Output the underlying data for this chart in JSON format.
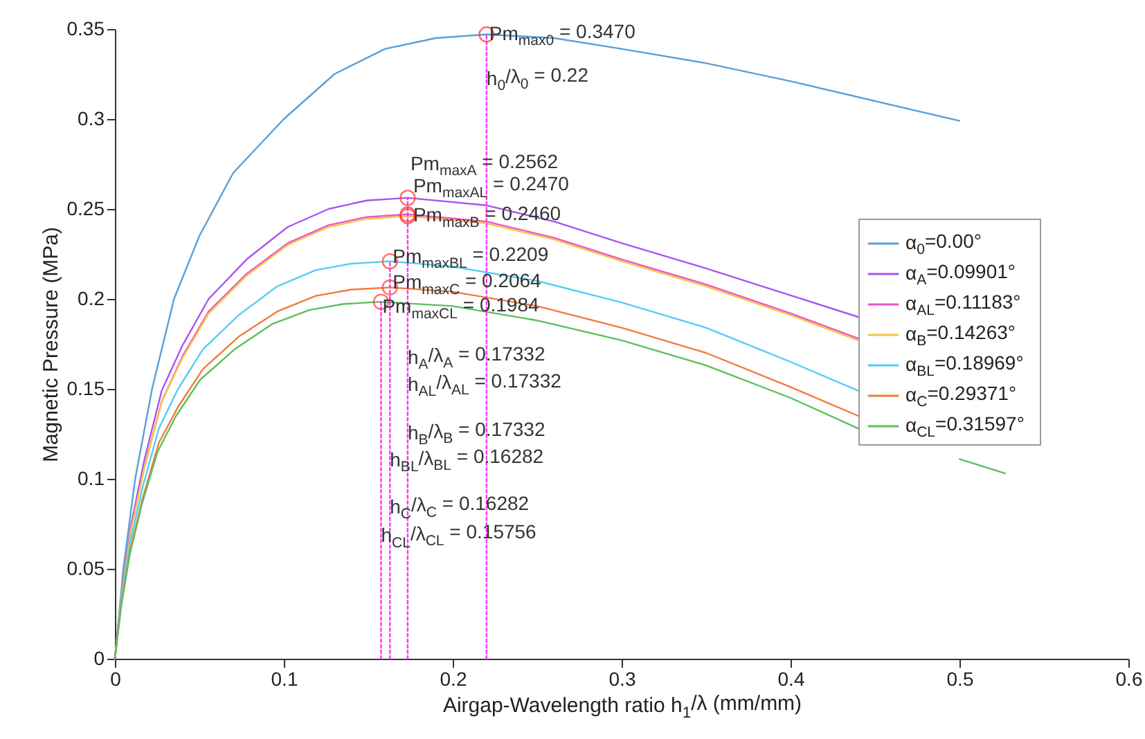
{
  "chart_data": {
    "type": "line",
    "xlabel": "Airgap-Wavelength ratio h$_{1}$/λ (mm/mm)",
    "ylabel": "Magnetic Pressure (MPa)",
    "xlim": [
      0,
      0.6
    ],
    "xticks": [
      0,
      0.1,
      0.2,
      0.3,
      0.4,
      0.5,
      0.6
    ],
    "ylim": [
      0,
      0.35
    ],
    "yticks": [
      0,
      0.05,
      0.1,
      0.15,
      0.2,
      0.25,
      0.3,
      0.35
    ],
    "grid": false,
    "legend": "right",
    "series": [
      {
        "name": "α$_{0}$=0.00°",
        "color": "#5a9fd8",
        "x": [
          0,
          0.005,
          0.012,
          0.022,
          0.035,
          0.05,
          0.07,
          0.1,
          0.13,
          0.16,
          0.19,
          0.22,
          0.26,
          0.3,
          0.35,
          0.4,
          0.45,
          0.5
        ],
        "values": [
          0,
          0.05,
          0.1,
          0.15,
          0.2,
          0.235,
          0.27,
          0.3,
          0.325,
          0.339,
          0.345,
          0.347,
          0.345,
          0.339,
          0.331,
          0.321,
          0.31,
          0.299
        ]
      },
      {
        "name": "α$_{A}$=0.09901°",
        "color": "#a855f0",
        "x": [
          0,
          0.004,
          0.0095,
          0.0173,
          0.0277,
          0.0399,
          0.0555,
          0.078,
          0.1023,
          0.1265,
          0.149,
          0.17332,
          0.22,
          0.26,
          0.3,
          0.35,
          0.4,
          0.44
        ],
        "values": [
          0,
          0.037,
          0.074,
          0.11,
          0.149,
          0.174,
          0.2,
          0.222,
          0.24,
          0.25,
          0.2547,
          0.2562,
          0.252,
          0.243,
          0.231,
          0.217,
          0.202,
          0.19
        ]
      },
      {
        "name": "α$_{AL}$=0.11183°",
        "color": "#f050c8",
        "x": [
          0,
          0.004,
          0.0095,
          0.0173,
          0.0277,
          0.0399,
          0.0555,
          0.078,
          0.1023,
          0.1265,
          0.149,
          0.17332,
          0.22,
          0.26,
          0.3,
          0.35,
          0.4,
          0.44
        ],
        "values": [
          0,
          0.0356,
          0.0716,
          0.106,
          0.143,
          0.168,
          0.193,
          0.214,
          0.231,
          0.241,
          0.2455,
          0.247,
          0.243,
          0.234,
          0.222,
          0.208,
          0.192,
          0.178
        ]
      },
      {
        "name": "α$_{B}$=0.14263°",
        "color": "#f5c445",
        "x": [
          0,
          0.004,
          0.0095,
          0.0173,
          0.0277,
          0.0399,
          0.0555,
          0.078,
          0.1023,
          0.1265,
          0.149,
          0.17332,
          0.22,
          0.26,
          0.3,
          0.35,
          0.4,
          0.44
        ],
        "values": [
          0,
          0.0354,
          0.0713,
          0.106,
          0.143,
          0.167,
          0.192,
          0.213,
          0.23,
          0.24,
          0.2445,
          0.246,
          0.242,
          0.233,
          0.221,
          0.207,
          0.191,
          0.177
        ]
      },
      {
        "name": "α$_{BL}$=0.18969°",
        "color": "#55ccf5",
        "x": [
          0,
          0.0037,
          0.009,
          0.0163,
          0.026,
          0.0374,
          0.0521,
          0.0733,
          0.0961,
          0.1189,
          0.14,
          0.16282,
          0.2,
          0.25,
          0.3,
          0.35,
          0.4,
          0.44
        ],
        "values": [
          0,
          0.0318,
          0.064,
          0.095,
          0.128,
          0.15,
          0.172,
          0.191,
          0.207,
          0.216,
          0.2196,
          0.2209,
          0.218,
          0.21,
          0.198,
          0.184,
          0.165,
          0.149
        ]
      },
      {
        "name": "α$_{C}$=0.29371°",
        "color": "#f07a3c",
        "x": [
          0,
          0.0037,
          0.009,
          0.0163,
          0.026,
          0.0374,
          0.0521,
          0.0733,
          0.0961,
          0.1189,
          0.14,
          0.16282,
          0.2,
          0.25,
          0.3,
          0.35,
          0.4,
          0.44
        ],
        "values": [
          0,
          0.0297,
          0.0599,
          0.0888,
          0.12,
          0.14,
          0.161,
          0.179,
          0.193,
          0.2017,
          0.2052,
          0.2064,
          0.204,
          0.196,
          0.184,
          0.17,
          0.151,
          0.135
        ]
      },
      {
        "name": "α$_{CL}$=0.31597°",
        "color": "#5cbf5c",
        "x": [
          0,
          0.0036,
          0.0087,
          0.0158,
          0.0252,
          0.0362,
          0.0504,
          0.0709,
          0.093,
          0.115,
          0.1355,
          0.15756,
          0.2,
          0.25,
          0.3,
          0.35,
          0.4,
          0.44,
          0.465,
          0.5,
          0.527
        ],
        "values": [
          0,
          0.0286,
          0.0575,
          0.0853,
          0.115,
          0.135,
          0.155,
          0.172,
          0.186,
          0.1938,
          0.1972,
          0.1984,
          0.196,
          0.188,
          0.177,
          0.163,
          0.145,
          0.128,
          null,
          0.111,
          0.103
        ]
      },
      {
        "type": "line",
        "line_style": "dotted",
        "color": "#ff33ff",
        "x": [
          0.22,
          0.22
        ],
        "values": [
          0,
          0.347
        ]
      },
      {
        "type": "line",
        "line_style": "dotted",
        "color": "#ff33ff",
        "x": [
          0.17332,
          0.17332
        ],
        "values": [
          0,
          0.2562
        ]
      },
      {
        "type": "line",
        "line_style": "dotted",
        "color": "#ff33ff",
        "x": [
          0.16282,
          0.16282
        ],
        "values": [
          0,
          0.2209
        ]
      },
      {
        "type": "line",
        "line_style": "dotted",
        "color": "#ff33ff",
        "x": [
          0.15756,
          0.15756
        ],
        "values": [
          0,
          0.1984
        ]
      },
      {
        "type": "scatter",
        "marker": "circle",
        "color": "#ff3333",
        "x": [
          0.22,
          0.17332,
          0.17332,
          0.17332,
          0.16282,
          0.16282,
          0.15756
        ],
        "values": [
          0.347,
          0.2562,
          0.247,
          0.246,
          0.2209,
          0.2064,
          0.1984
        ]
      }
    ],
    "annotations": [
      {
        "text": "Pm$_{max0}$ = 0.3470",
        "x": 0.22,
        "y": 0.347
      },
      {
        "text": "h$_{0}$/λ$_{0}$ = 0.22",
        "x": 0.22,
        "y": 0.322
      },
      {
        "text": "Pm$_{maxA}$ = 0.2562",
        "x": 0.17332,
        "y": 0.2562
      },
      {
        "text": "Pm$_{maxAL}$  = 0.2470",
        "x": 0.17332,
        "y": 0.247
      },
      {
        "text": "Pm$_{maxB}$ = 0.2460",
        "x": 0.17332,
        "y": 0.246
      },
      {
        "text": "Pm$_{maxBL}$ = 0.2209",
        "x": 0.16282,
        "y": 0.2209
      },
      {
        "text": "Pm$_{maxC}$ = 0.2064",
        "x": 0.16282,
        "y": 0.2064
      },
      {
        "text": "Pm$_{maxCL}$ = 0.1984",
        "x": 0.15756,
        "y": 0.1984
      },
      {
        "text": "h$_{A}$/λ$_{A}$ = 0.17332",
        "x": 0.17332,
        "y": 0.167
      },
      {
        "text": "h$_{AL}$/λ$_{AL}$ = 0.17332",
        "x": 0.17332,
        "y": 0.152
      },
      {
        "text": "h$_{B}$/λ$_{B}$ = 0.17332",
        "x": 0.17332,
        "y": 0.125
      },
      {
        "text": "h$_{BL}$/λ$_{BL}$ = 0.16282",
        "x": 0.16282,
        "y": 0.11
      },
      {
        "text": "h$_{C}$/λ$_{C}$ = 0.16282",
        "x": 0.16282,
        "y": 0.084
      },
      {
        "text": "h$_{CL}$/λ$_{CL}$ = 0.15756",
        "x": 0.15756,
        "y": 0.068
      }
    ]
  }
}
